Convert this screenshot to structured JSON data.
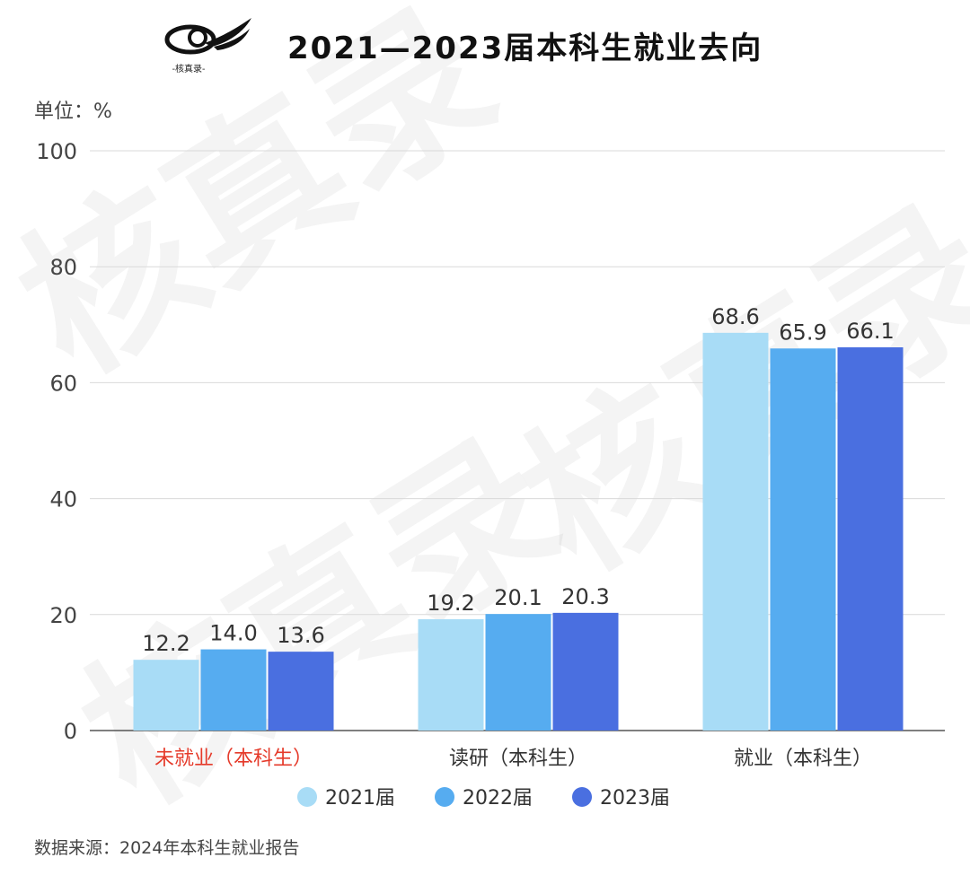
{
  "header": {
    "title": "2021—2023届本科生就业去向",
    "logo_text": "-核真录-"
  },
  "unit_label": "单位：%",
  "source_label": "数据来源：2024年本科生就业报告",
  "watermark": "核真录",
  "colors": {
    "series_2021": "#a8dcf6",
    "series_2022": "#56acf0",
    "series_2023": "#4a6fe0",
    "highlight_category": "#e53a2a",
    "gridline": "#d9d9d9",
    "axis_text": "#444444"
  },
  "chart_data": {
    "type": "bar",
    "title": "2021—2023届本科生就业去向",
    "ylabel": "单位：%",
    "ylim": [
      0,
      100
    ],
    "yticks": [
      0,
      20,
      40,
      60,
      80,
      100
    ],
    "grid": true,
    "legend_position": "bottom",
    "categories": [
      "未就业（本科生）",
      "读研（本科生）",
      "就业（本科生）"
    ],
    "highlight_category_index": 0,
    "series": [
      {
        "name": "2021届",
        "values": [
          12.2,
          19.2,
          68.6
        ],
        "labels": [
          "12.2",
          "19.2",
          "68.6"
        ]
      },
      {
        "name": "2022届",
        "values": [
          14.0,
          20.1,
          65.9
        ],
        "labels": [
          "14.0",
          "20.1",
          "65.9"
        ]
      },
      {
        "name": "2023届",
        "values": [
          13.6,
          20.3,
          66.1
        ],
        "labels": [
          "13.6",
          "20.3",
          "66.1"
        ]
      }
    ]
  }
}
